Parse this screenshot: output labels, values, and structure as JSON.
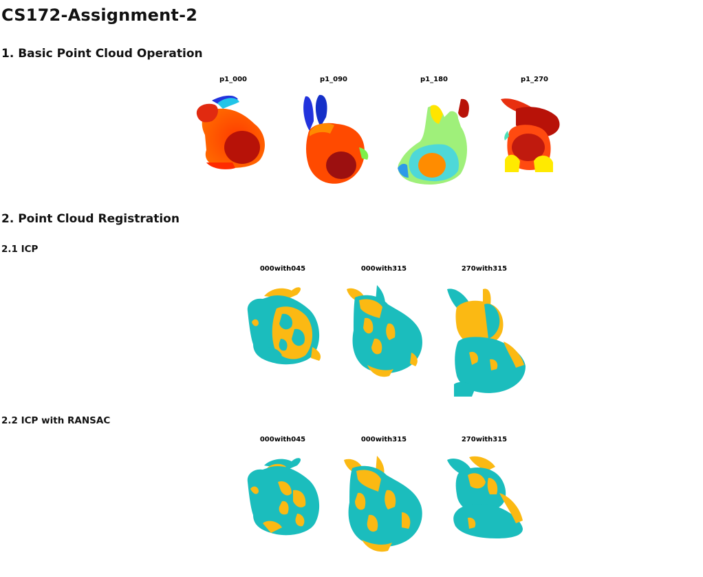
{
  "document": {
    "title": "CS172-Assignment-2"
  },
  "section1": {
    "heading": "1. Basic Point Cloud Operation",
    "figures": [
      {
        "caption": "p1_000"
      },
      {
        "caption": "p1_090"
      },
      {
        "caption": "p1_180"
      },
      {
        "caption": "p1_270"
      }
    ]
  },
  "section2": {
    "heading": "2. Point Cloud Registration",
    "icp": {
      "heading": "2.1 ICP",
      "figures": [
        {
          "caption": "000with045"
        },
        {
          "caption": "000with315"
        },
        {
          "caption": "270with315"
        }
      ]
    },
    "ransac": {
      "heading": "2.2 ICP with RANSAC",
      "figures": [
        {
          "caption": "000with045"
        },
        {
          "caption": "000with315"
        },
        {
          "caption": "270with315"
        }
      ]
    }
  },
  "colors": {
    "teal": "#1bbdbd",
    "gold": "#fbb913"
  }
}
